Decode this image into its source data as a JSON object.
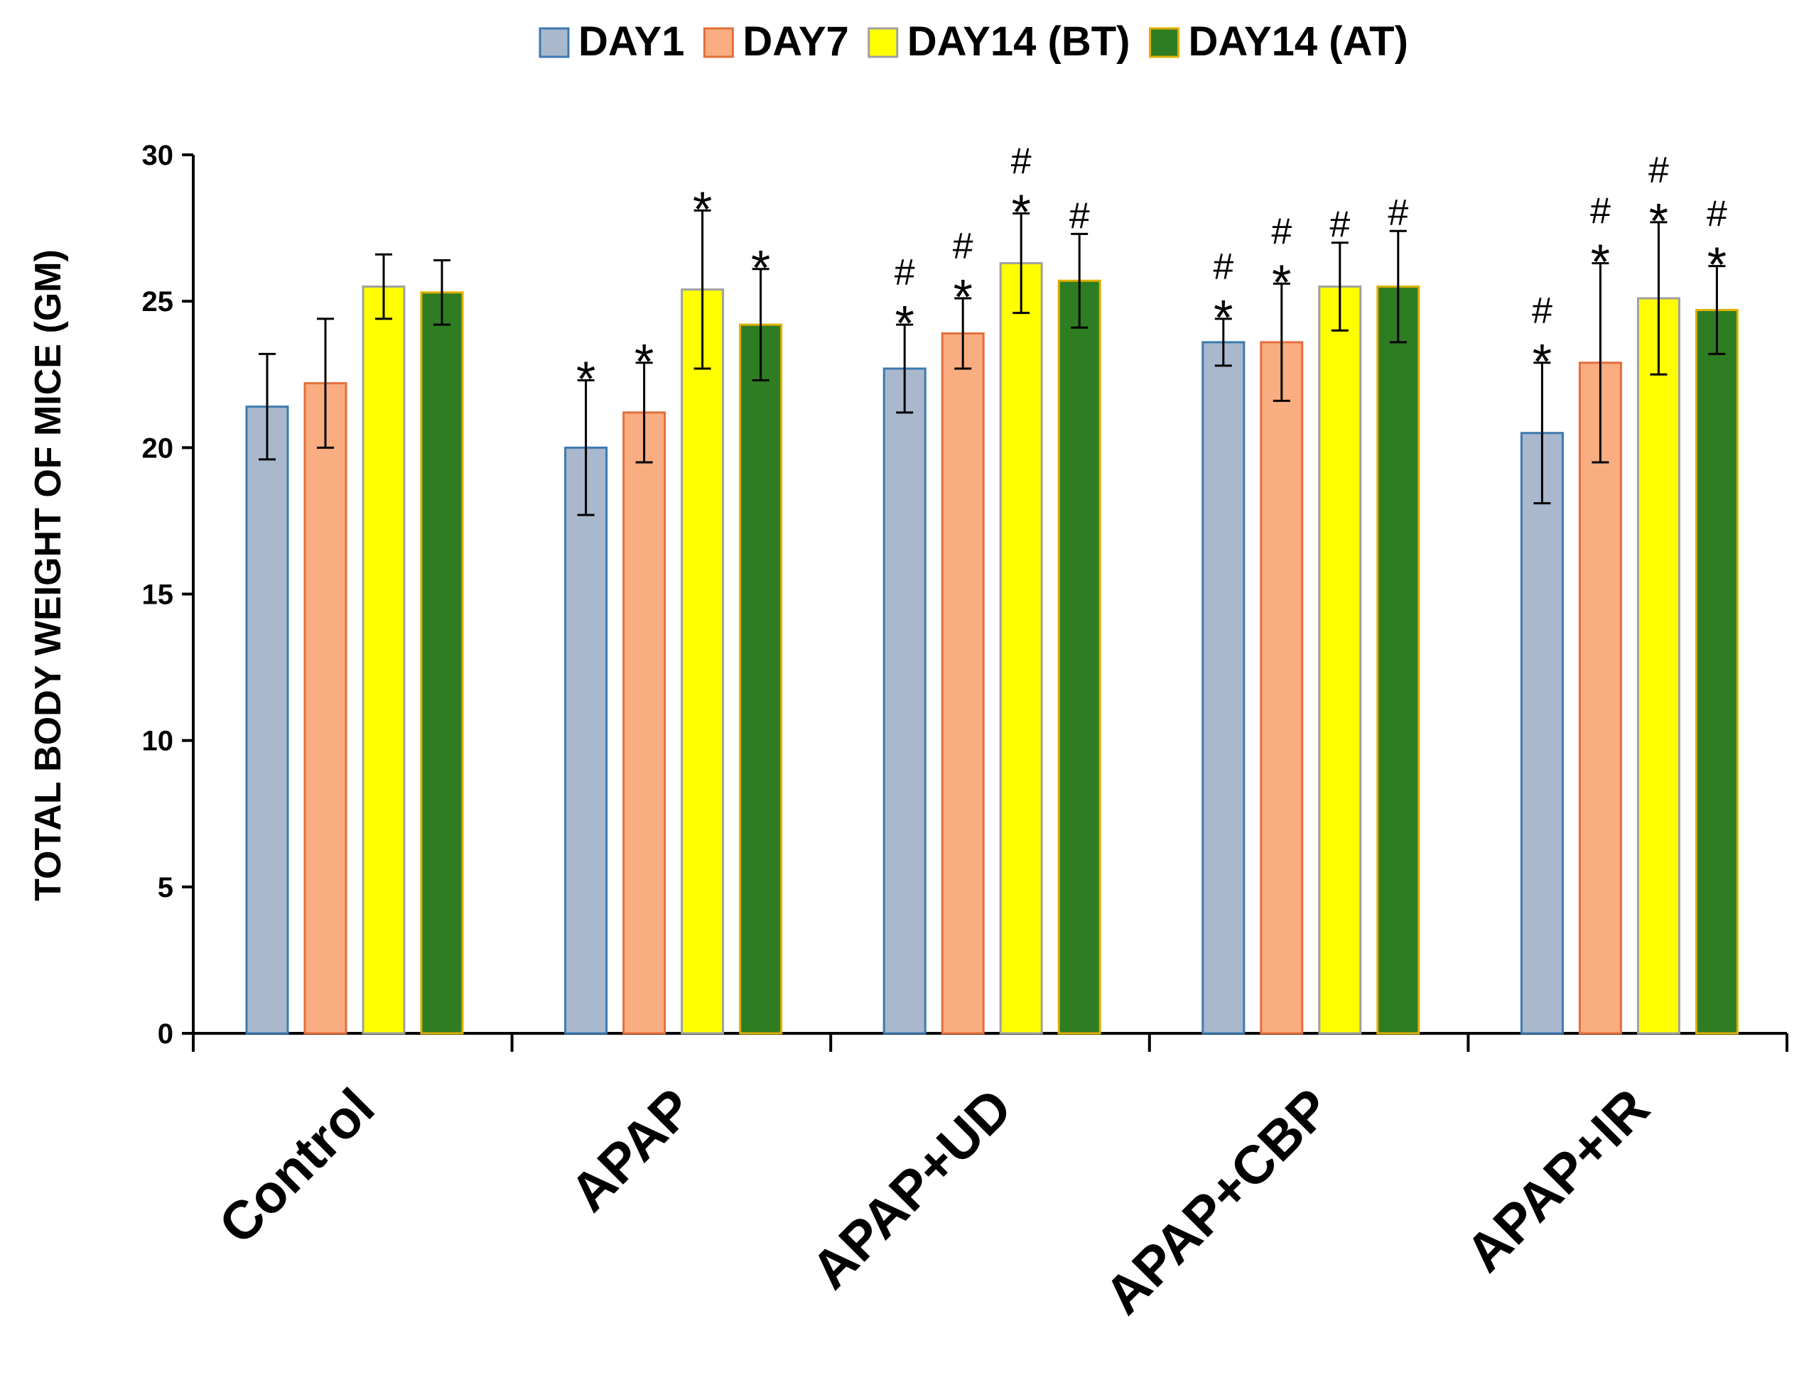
{
  "chart_data": {
    "type": "bar",
    "title": "",
    "xlabel": "",
    "ylabel": "TOTAL BODY WEIGHT OF MICE (GM)",
    "ylim": [
      0,
      30
    ],
    "yticks": [
      "0",
      "5",
      "10",
      "15",
      "20",
      "25",
      "30"
    ],
    "grid": false,
    "legend_position": "top",
    "categories": [
      "Control",
      "APAP",
      "APAP+UD",
      "APAP+CBP",
      "APAP+IR"
    ],
    "series": [
      {
        "name": "DAY1",
        "color": "#a9b8cc",
        "border": "#3d7ab0",
        "values": [
          21.4,
          20.0,
          22.7,
          23.6,
          20.5
        ],
        "errors": [
          1.8,
          2.3,
          1.5,
          0.8,
          2.4
        ],
        "asterisk": [
          false,
          true,
          true,
          true,
          true
        ],
        "hash": [
          false,
          false,
          true,
          true,
          true
        ]
      },
      {
        "name": "DAY7",
        "color": "#f9ad81",
        "border": "#e2703b",
        "values": [
          22.2,
          21.2,
          23.9,
          23.6,
          22.9
        ],
        "errors": [
          2.2,
          1.7,
          1.2,
          2.0,
          3.4
        ],
        "asterisk": [
          false,
          true,
          true,
          true,
          true
        ],
        "hash": [
          false,
          false,
          true,
          true,
          true
        ]
      },
      {
        "name": "DAY14 (BT)",
        "color": "#ffff00",
        "border": "#a0a0a0",
        "values": [
          25.5,
          25.4,
          26.3,
          25.5,
          25.1
        ],
        "errors": [
          1.1,
          2.7,
          1.7,
          1.5,
          2.6
        ],
        "asterisk": [
          false,
          true,
          true,
          false,
          true
        ],
        "hash": [
          false,
          false,
          true,
          true,
          true
        ]
      },
      {
        "name": "DAY14 (AT)",
        "color": "#2e7d22",
        "border": "#e0b000",
        "values": [
          25.3,
          24.2,
          25.7,
          25.5,
          24.7
        ],
        "errors": [
          1.1,
          1.9,
          1.6,
          1.9,
          1.5
        ],
        "asterisk": [
          false,
          true,
          false,
          false,
          true
        ],
        "hash": [
          false,
          false,
          true,
          true,
          true
        ]
      }
    ],
    "annotation_symbols": {
      "asterisk": "*",
      "hash": "#"
    }
  }
}
